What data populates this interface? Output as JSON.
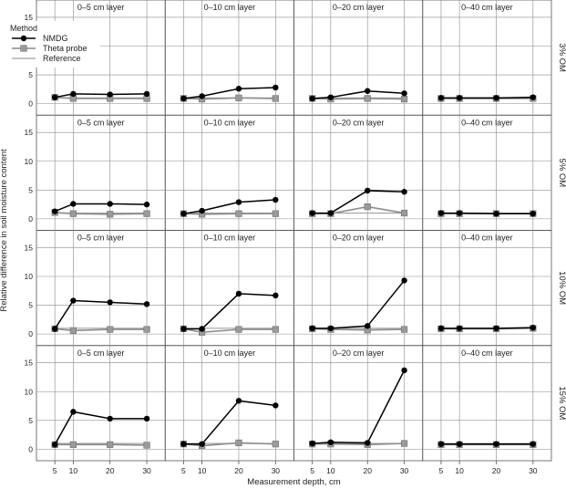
{
  "chart_data": {
    "type": "line",
    "xlabel": "Measurement depth, cm",
    "ylabel": "Relative difference in soil moisture content",
    "x_ticks": [
      5,
      10,
      20,
      30
    ],
    "y_ticks": [
      0,
      5,
      10,
      15
    ],
    "xlim": [
      0,
      35
    ],
    "ylim": [
      -2,
      18
    ],
    "legend": {
      "title": "Method",
      "placement": "top-left",
      "entries": [
        "NMDG",
        "Theta probe",
        "Reference"
      ]
    },
    "columns": [
      "0–5 cm layer",
      "0–10 cm layer",
      "0–20 cm layer",
      "0–40 cm layer"
    ],
    "rows": [
      "3% OM",
      "5% OM",
      "10% OM",
      "15% OM"
    ],
    "x": [
      5,
      10,
      20,
      30
    ],
    "colors": {
      "NMDG": "#000000",
      "Theta probe": "#8c8c8c",
      "Reference": "#a0a0a0"
    },
    "panels": [
      [
        {
          "NMDG": [
            1.1,
            1.7,
            1.6,
            1.7
          ],
          "Theta probe": [
            1.1,
            0.9,
            0.9,
            0.9
          ],
          "Reference": [
            1,
            1,
            1,
            1
          ]
        },
        {
          "NMDG": [
            0.9,
            1.3,
            2.6,
            2.8
          ],
          "Theta probe": [
            0.9,
            0.8,
            1.0,
            0.9
          ],
          "Reference": [
            1,
            1,
            1,
            1
          ]
        },
        {
          "NMDG": [
            0.9,
            1.1,
            2.2,
            1.8
          ],
          "Theta probe": [
            0.9,
            0.8,
            0.9,
            0.8
          ],
          "Reference": [
            1,
            1,
            1,
            1
          ]
        },
        {
          "NMDG": [
            1.0,
            1.0,
            1.0,
            1.1
          ],
          "Theta probe": [
            0.9,
            0.9,
            0.9,
            0.9
          ],
          "Reference": [
            1,
            1,
            1,
            1
          ]
        }
      ],
      [
        {
          "NMDG": [
            1.3,
            2.6,
            2.6,
            2.5
          ],
          "Theta probe": [
            1.1,
            0.9,
            0.8,
            0.9
          ],
          "Reference": [
            1,
            1,
            1,
            1
          ]
        },
        {
          "NMDG": [
            0.9,
            1.4,
            2.9,
            3.3
          ],
          "Theta probe": [
            0.9,
            0.8,
            0.9,
            0.9
          ],
          "Reference": [
            1,
            1,
            1,
            1
          ]
        },
        {
          "NMDG": [
            1.0,
            1.0,
            4.9,
            4.7
          ],
          "Theta probe": [
            0.9,
            0.9,
            2.1,
            1.0
          ],
          "Reference": [
            1,
            1,
            1,
            1
          ]
        },
        {
          "NMDG": [
            1.0,
            1.0,
            0.9,
            0.9
          ],
          "Theta probe": [
            0.9,
            0.9,
            0.9,
            0.9
          ],
          "Reference": [
            1,
            1,
            1,
            1
          ]
        }
      ],
      [
        {
          "NMDG": [
            0.9,
            5.8,
            5.5,
            5.2
          ],
          "Theta probe": [
            0.9,
            0.6,
            0.8,
            0.8
          ],
          "Reference": [
            1,
            1,
            1,
            1
          ]
        },
        {
          "NMDG": [
            0.9,
            0.9,
            7.0,
            6.7
          ],
          "Theta probe": [
            0.9,
            0.3,
            0.8,
            0.8
          ],
          "Reference": [
            1,
            1,
            1,
            1
          ]
        },
        {
          "NMDG": [
            1.0,
            1.0,
            1.4,
            9.3
          ],
          "Theta probe": [
            0.9,
            0.8,
            0.7,
            0.8
          ],
          "Reference": [
            1,
            1,
            1,
            1
          ]
        },
        {
          "NMDG": [
            1.0,
            1.0,
            1.0,
            1.1
          ],
          "Theta probe": [
            0.9,
            0.9,
            0.9,
            1.0
          ],
          "Reference": [
            1,
            1,
            1,
            1
          ]
        }
      ],
      [
        {
          "NMDG": [
            0.8,
            6.5,
            5.3,
            5.3
          ],
          "Theta probe": [
            0.8,
            0.8,
            0.8,
            0.7
          ],
          "Reference": [
            1,
            1,
            1,
            1
          ]
        },
        {
          "NMDG": [
            0.9,
            0.9,
            8.4,
            7.6
          ],
          "Theta probe": [
            0.9,
            0.6,
            1.1,
            0.9
          ],
          "Reference": [
            1,
            1,
            1,
            1
          ]
        },
        {
          "NMDG": [
            1.0,
            1.2,
            1.1,
            13.7
          ],
          "Theta probe": [
            0.9,
            0.9,
            0.8,
            1.0
          ],
          "Reference": [
            1,
            1,
            1,
            1
          ]
        },
        {
          "NMDG": [
            0.9,
            0.9,
            0.9,
            0.9
          ],
          "Theta probe": [
            0.8,
            0.8,
            0.8,
            0.8
          ],
          "Reference": [
            1,
            1,
            1,
            1
          ]
        }
      ]
    ]
  }
}
